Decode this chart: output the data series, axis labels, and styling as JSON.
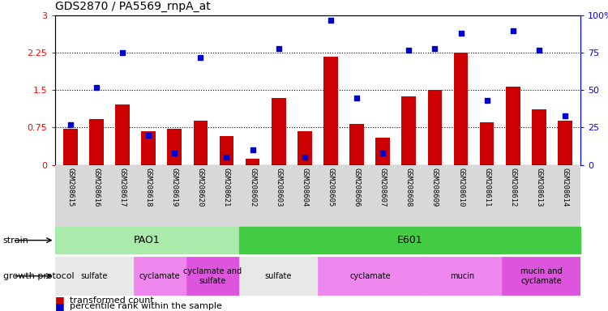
{
  "title": "GDS2870 / PA5569_rnpA_at",
  "samples": [
    "GSM208615",
    "GSM208616",
    "GSM208617",
    "GSM208618",
    "GSM208619",
    "GSM208620",
    "GSM208621",
    "GSM208602",
    "GSM208603",
    "GSM208604",
    "GSM208605",
    "GSM208606",
    "GSM208607",
    "GSM208608",
    "GSM208609",
    "GSM208610",
    "GSM208611",
    "GSM208612",
    "GSM208613",
    "GSM208614"
  ],
  "red_values": [
    0.72,
    0.92,
    1.22,
    0.68,
    0.72,
    0.88,
    0.58,
    0.12,
    1.35,
    0.68,
    2.18,
    0.82,
    0.55,
    1.38,
    1.5,
    2.25,
    0.85,
    1.57,
    1.12,
    0.88
  ],
  "blue_values": [
    27,
    52,
    75,
    20,
    8,
    72,
    5,
    10,
    78,
    5,
    97,
    45,
    8,
    77,
    78,
    88,
    43,
    90,
    77,
    33
  ],
  "ylim_left": [
    0,
    3
  ],
  "ylim_right": [
    0,
    100
  ],
  "yticks_left": [
    0,
    0.75,
    1.5,
    2.25,
    3
  ],
  "yticks_right": [
    0,
    25,
    50,
    75,
    100
  ],
  "ytick_labels_left": [
    "0",
    "0.75",
    "1.5",
    "2.25",
    "3"
  ],
  "ytick_labels_right": [
    "0",
    "25",
    "50",
    "75",
    "100%"
  ],
  "hlines": [
    0.75,
    1.5,
    2.25
  ],
  "bar_color": "#cc0000",
  "dot_color": "#0000cc",
  "strain_regions": [
    {
      "label": "PAO1",
      "start": 0,
      "end": 7,
      "color": "#aaeaaa"
    },
    {
      "label": "E601",
      "start": 7,
      "end": 20,
      "color": "#44cc44"
    }
  ],
  "protocol_regions": [
    {
      "label": "sulfate",
      "start": 0,
      "end": 3,
      "color": "#e8e8e8"
    },
    {
      "label": "cyclamate",
      "start": 3,
      "end": 5,
      "color": "#ee88ee"
    },
    {
      "label": "cyclamate and\nsulfate",
      "start": 5,
      "end": 7,
      "color": "#dd55dd"
    },
    {
      "label": "sulfate",
      "start": 7,
      "end": 10,
      "color": "#e8e8e8"
    },
    {
      "label": "cyclamate",
      "start": 10,
      "end": 14,
      "color": "#ee88ee"
    },
    {
      "label": "mucin",
      "start": 14,
      "end": 17,
      "color": "#ee88ee"
    },
    {
      "label": "mucin and\ncyclamate",
      "start": 17,
      "end": 20,
      "color": "#dd55dd"
    }
  ],
  "legend_items": [
    {
      "label": "transformed count",
      "color": "#cc0000"
    },
    {
      "label": "percentile rank within the sample",
      "color": "#0000cc"
    }
  ],
  "fig_width": 7.5,
  "fig_height": 3.84,
  "dpi": 100
}
